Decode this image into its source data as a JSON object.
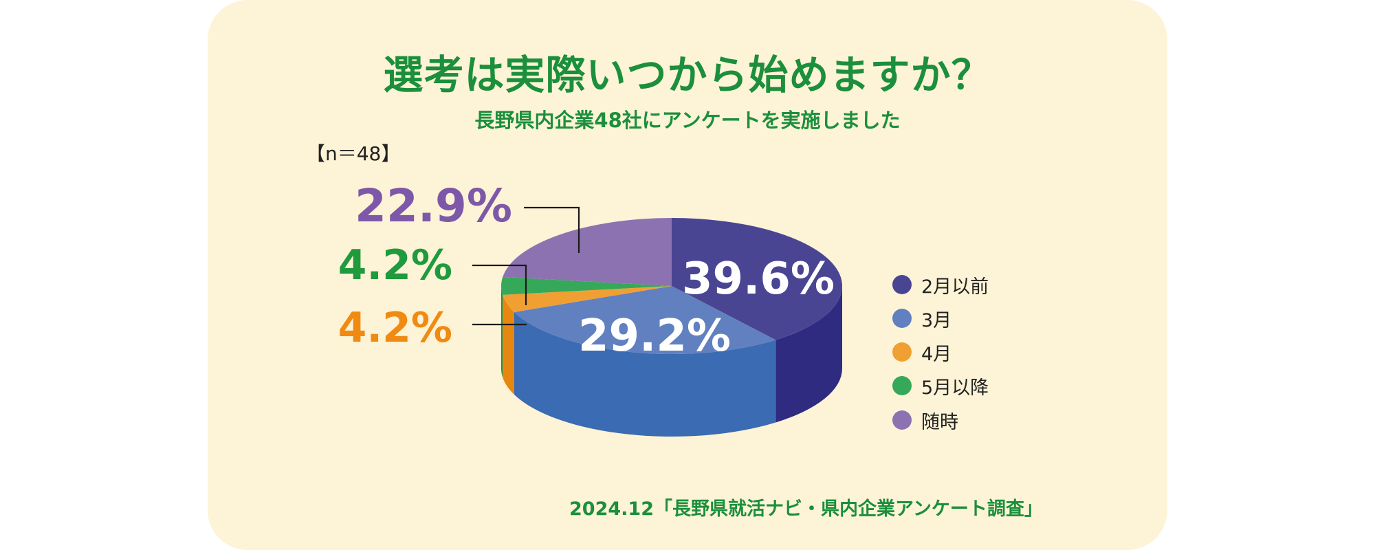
{
  "title": "選考は実際いつから始めますか？",
  "subtitle": "長野県内企業48社にアンケートを実施しました",
  "sample_size_label": "【n＝48】",
  "source": "2024.12「長野県就活ナビ・県内企業アンケート調査」",
  "chart_data": {
    "type": "pie",
    "title": "選考は実際いつから始めますか？",
    "subtitle": "長野県内企業48社にアンケートを実施しました",
    "legend_position": "right",
    "slices": [
      {
        "label": "2月以前",
        "value": 39.6,
        "display": "39.6%",
        "color": "#4a4592",
        "side_color": "#2f2b80",
        "label_color": "#ffffff"
      },
      {
        "label": "3月",
        "value": 29.2,
        "display": "29.2%",
        "color": "#6080c0",
        "side_color": "#3a6bb3",
        "label_color": "#ffffff"
      },
      {
        "label": "4月",
        "value": 4.2,
        "display": "4.2%",
        "color": "#f0a033",
        "side_color": "#e8870f",
        "label_color": "#f08a12"
      },
      {
        "label": "5月以降",
        "value": 4.2,
        "display": "4.2%",
        "color": "#36a85a",
        "side_color": "#22903f",
        "label_color": "#1f9a3c"
      },
      {
        "label": "随時",
        "value": 22.9,
        "display": "22.9%",
        "color": "#8d72b2",
        "side_color": "#7a5fa2",
        "label_color": "#7e58a8"
      }
    ]
  }
}
